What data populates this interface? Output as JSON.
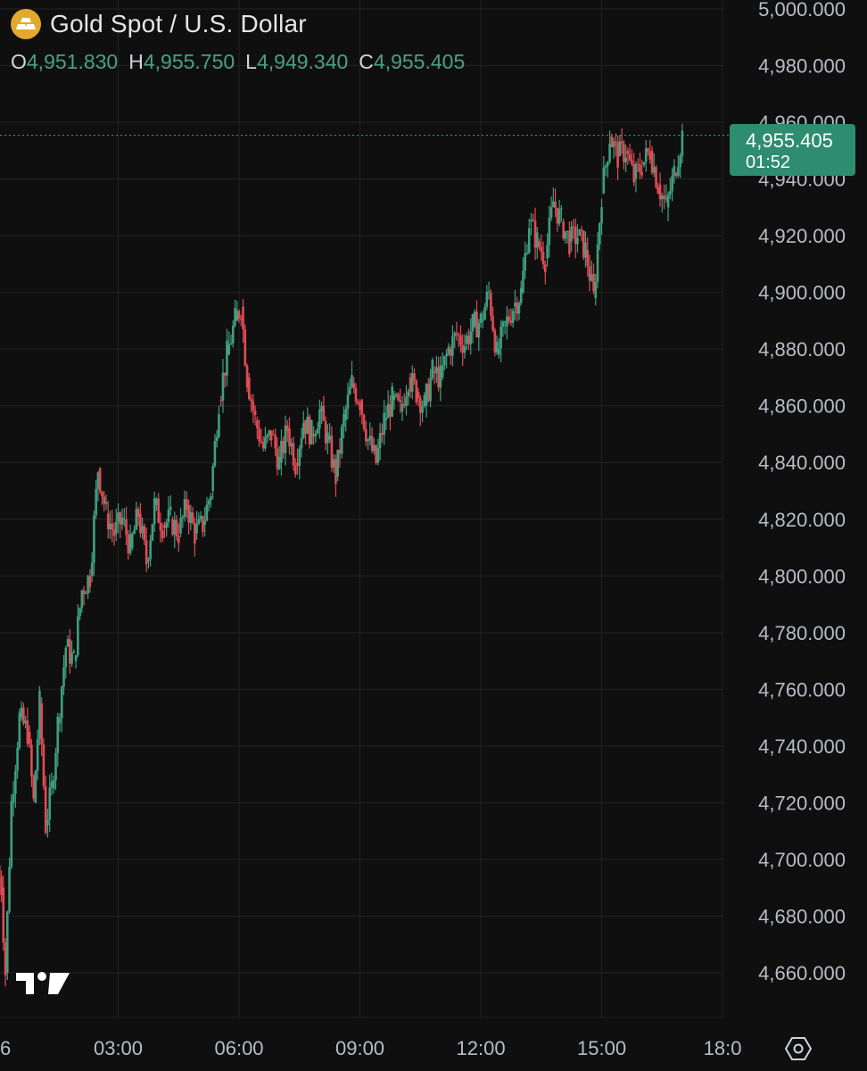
{
  "header": {
    "symbol_icon": "gold-bars-icon",
    "title": "Gold Spot / U.S. Dollar",
    "ohlc": [
      {
        "key": "O",
        "value": "4,951.830"
      },
      {
        "key": "H",
        "value": "4,955.750"
      },
      {
        "key": "L",
        "value": "4,949.340"
      },
      {
        "key": "C",
        "value": "4,955.405"
      }
    ]
  },
  "last_price": {
    "price": "4,955.405",
    "countdown": "01:52"
  },
  "colors": {
    "up": "#3f9f80",
    "down": "#e04b55",
    "background": "#0f0f0f",
    "grid": "#232323",
    "tag": "#2e8d6e"
  },
  "icons": {
    "logo": "tradingview-logo-icon",
    "settings": "settings-gear-icon"
  },
  "chart_data": {
    "type": "candlestick",
    "title": "Gold Spot / U.S. Dollar",
    "ylim": [
      4650,
      5005
    ],
    "y_ticks": [
      "4,660.000",
      "4,680.000",
      "4,700.000",
      "4,720.000",
      "4,740.000",
      "4,760.000",
      "4,780.000",
      "4,800.000",
      "4,820.000",
      "4,840.000",
      "4,860.000",
      "4,880.000",
      "4,900.000",
      "4,920.000",
      "4,940.000",
      "4,960.000",
      "4,980.000",
      "5,000.000"
    ],
    "y_tick_values": [
      4660,
      4680,
      4700,
      4720,
      4740,
      4760,
      4780,
      4800,
      4820,
      4840,
      4860,
      4880,
      4900,
      4920,
      4940,
      4960,
      4980,
      5000
    ],
    "x_ticks": [
      "6",
      "03:00",
      "06:00",
      "09:00",
      "12:00",
      "15:00",
      "18:0"
    ],
    "x_tick_hours": [
      0.0,
      3.0,
      6.0,
      9.0,
      12.0,
      15.0,
      18.0
    ],
    "x_range_hours": [
      0.0,
      18.0
    ],
    "grid": true,
    "last_price_value": 4955.405,
    "series": [
      {
        "hour": 0.1,
        "close": 4690
      },
      {
        "hour": 0.2,
        "close": 4660
      },
      {
        "hour": 0.35,
        "close": 4720
      },
      {
        "hour": 0.55,
        "close": 4750
      },
      {
        "hour": 0.75,
        "close": 4745
      },
      {
        "hour": 0.9,
        "close": 4720
      },
      {
        "hour": 1.05,
        "close": 4755
      },
      {
        "hour": 1.2,
        "close": 4712
      },
      {
        "hour": 1.35,
        "close": 4725
      },
      {
        "hour": 1.5,
        "close": 4748
      },
      {
        "hour": 1.7,
        "close": 4775
      },
      {
        "hour": 1.9,
        "close": 4770
      },
      {
        "hour": 2.1,
        "close": 4795
      },
      {
        "hour": 2.3,
        "close": 4800
      },
      {
        "hour": 2.5,
        "close": 4838
      },
      {
        "hour": 2.7,
        "close": 4822
      },
      {
        "hour": 2.9,
        "close": 4815
      },
      {
        "hour": 3.1,
        "close": 4820
      },
      {
        "hour": 3.3,
        "close": 4810
      },
      {
        "hour": 3.5,
        "close": 4822
      },
      {
        "hour": 3.7,
        "close": 4805
      },
      {
        "hour": 3.9,
        "close": 4825
      },
      {
        "hour": 4.1,
        "close": 4818
      },
      {
        "hour": 4.3,
        "close": 4820
      },
      {
        "hour": 4.5,
        "close": 4815
      },
      {
        "hour": 4.7,
        "close": 4825
      },
      {
        "hour": 4.9,
        "close": 4815
      },
      {
        "hour": 5.1,
        "close": 4818
      },
      {
        "hour": 5.3,
        "close": 4830
      },
      {
        "hour": 5.5,
        "close": 4862
      },
      {
        "hour": 5.7,
        "close": 4878
      },
      {
        "hour": 5.9,
        "close": 4890
      },
      {
        "hour": 6.05,
        "close": 4895
      },
      {
        "hour": 6.2,
        "close": 4870
      },
      {
        "hour": 6.4,
        "close": 4855
      },
      {
        "hour": 6.6,
        "close": 4845
      },
      {
        "hour": 6.8,
        "close": 4850
      },
      {
        "hour": 7.0,
        "close": 4840
      },
      {
        "hour": 7.2,
        "close": 4852
      },
      {
        "hour": 7.4,
        "close": 4840
      },
      {
        "hour": 7.6,
        "close": 4855
      },
      {
        "hour": 7.8,
        "close": 4850
      },
      {
        "hour": 8.0,
        "close": 4858
      },
      {
        "hour": 8.2,
        "close": 4848
      },
      {
        "hour": 8.4,
        "close": 4835
      },
      {
        "hour": 8.6,
        "close": 4855
      },
      {
        "hour": 8.8,
        "close": 4868
      },
      {
        "hour": 9.0,
        "close": 4862
      },
      {
        "hour": 9.2,
        "close": 4848
      },
      {
        "hour": 9.4,
        "close": 4840
      },
      {
        "hour": 9.6,
        "close": 4855
      },
      {
        "hour": 9.8,
        "close": 4862
      },
      {
        "hour": 10.0,
        "close": 4858
      },
      {
        "hour": 10.2,
        "close": 4870
      },
      {
        "hour": 10.4,
        "close": 4865
      },
      {
        "hour": 10.6,
        "close": 4860
      },
      {
        "hour": 10.8,
        "close": 4872
      },
      {
        "hour": 11.0,
        "close": 4870
      },
      {
        "hour": 11.2,
        "close": 4880
      },
      {
        "hour": 11.4,
        "close": 4885
      },
      {
        "hour": 11.6,
        "close": 4882
      },
      {
        "hour": 11.8,
        "close": 4888
      },
      {
        "hour": 12.0,
        "close": 4890
      },
      {
        "hour": 12.2,
        "close": 4900
      },
      {
        "hour": 12.4,
        "close": 4878
      },
      {
        "hour": 12.6,
        "close": 4888
      },
      {
        "hour": 12.8,
        "close": 4895
      },
      {
        "hour": 13.0,
        "close": 4900
      },
      {
        "hour": 13.2,
        "close": 4925
      },
      {
        "hour": 13.4,
        "close": 4918
      },
      {
        "hour": 13.6,
        "close": 4912
      },
      {
        "hour": 13.8,
        "close": 4932
      },
      {
        "hour": 14.0,
        "close": 4925
      },
      {
        "hour": 14.2,
        "close": 4918
      },
      {
        "hour": 14.4,
        "close": 4920
      },
      {
        "hour": 14.6,
        "close": 4915
      },
      {
        "hour": 14.8,
        "close": 4898
      },
      {
        "hour": 15.0,
        "close": 4935
      },
      {
        "hour": 15.2,
        "close": 4955
      },
      {
        "hour": 15.4,
        "close": 4948
      },
      {
        "hour": 15.6,
        "close": 4950
      },
      {
        "hour": 15.8,
        "close": 4940
      },
      {
        "hour": 16.0,
        "close": 4945
      },
      {
        "hour": 16.2,
        "close": 4950
      },
      {
        "hour": 16.4,
        "close": 4938
      },
      {
        "hour": 16.6,
        "close": 4930
      },
      {
        "hour": 16.8,
        "close": 4942
      },
      {
        "hour": 17.0,
        "close": 4955.405
      }
    ]
  }
}
